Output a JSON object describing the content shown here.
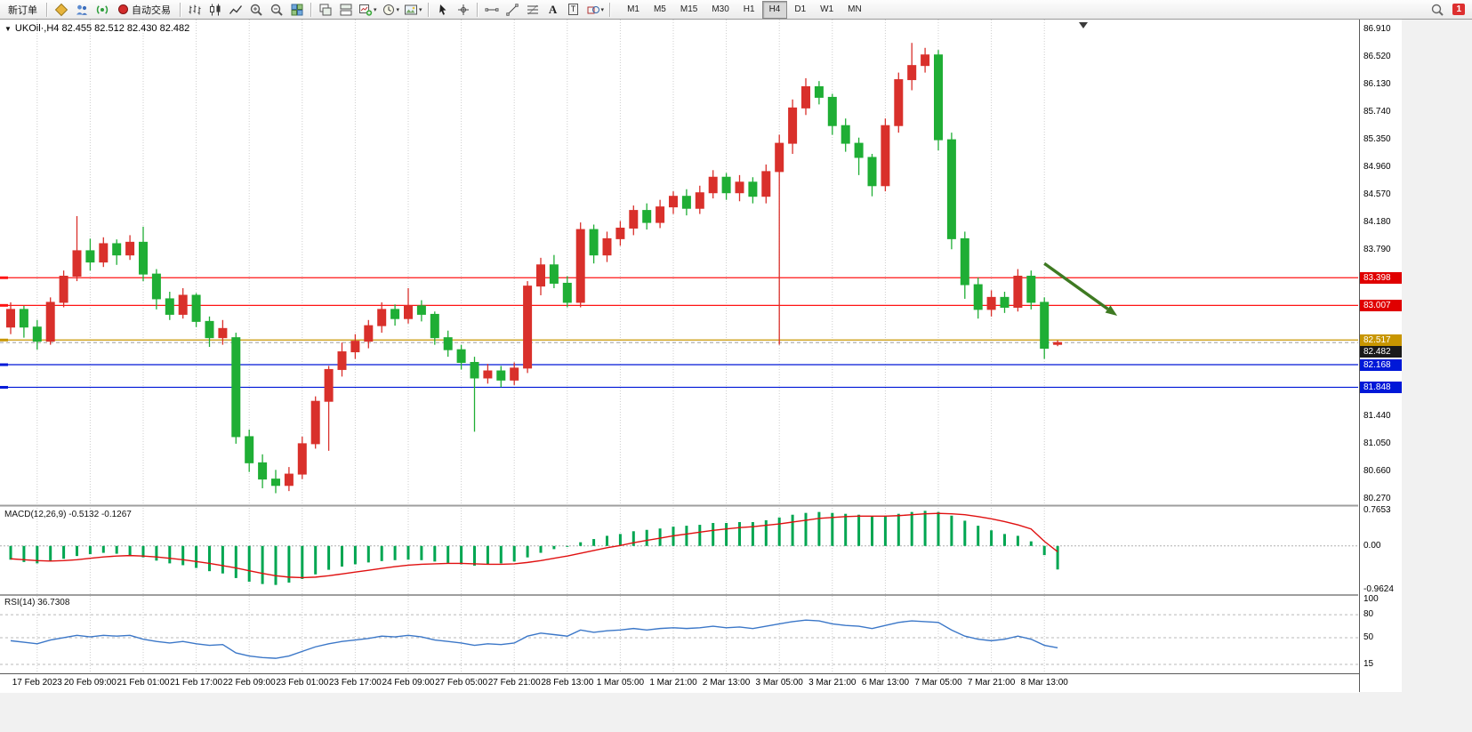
{
  "toolbar": {
    "new_order_label": "新订单",
    "auto_trading_label": "自动交易",
    "timeframes": [
      "M1",
      "M5",
      "M15",
      "M30",
      "H1",
      "H4",
      "D1",
      "W1",
      "MN"
    ],
    "active_timeframe": "H4",
    "notification_count": "1"
  },
  "glyphs": {
    "one_click_arrow": "▼",
    "dropdown_caret": "▾",
    "text_tool": "A",
    "label_tool": "T"
  },
  "chart": {
    "symbol_ohlc_text": "UKOil·,H4  82.455 82.512 82.430 82.482",
    "macd_text": "MACD(12,26,9) -0.5132 -0.1267",
    "rsi_text": "RSI(14) 36.7308"
  },
  "chart_data": {
    "type": "candlestick",
    "symbol": "UKOil",
    "timeframe": "H4",
    "current_bar": {
      "open": 82.455,
      "high": 82.512,
      "low": 82.43,
      "close": 82.482
    },
    "up_color": "#d9302b",
    "down_color": "#1fae35",
    "y_axis_ticks": [
      "86.910",
      "86.520",
      "86.130",
      "85.740",
      "85.350",
      "84.960",
      "84.570",
      "84.180",
      "83.790",
      "81.440",
      "81.050",
      "80.660",
      "80.270"
    ],
    "x_labels": [
      {
        "i": 2,
        "t": "17 Feb 2023"
      },
      {
        "i": 6,
        "t": "20 Feb 09:00"
      },
      {
        "i": 10,
        "t": "21 Feb 01:00"
      },
      {
        "i": 14,
        "t": "21 Feb 17:00"
      },
      {
        "i": 18,
        "t": "22 Feb 09:00"
      },
      {
        "i": 22,
        "t": "23 Feb 01:00"
      },
      {
        "i": 26,
        "t": "23 Feb 17:00"
      },
      {
        "i": 30,
        "t": "24 Feb 09:00"
      },
      {
        "i": 34,
        "t": "27 Feb 05:00"
      },
      {
        "i": 38,
        "t": "27 Feb 21:00"
      },
      {
        "i": 42,
        "t": "28 Feb 13:00"
      },
      {
        "i": 46,
        "t": "1 Mar 05:00"
      },
      {
        "i": 50,
        "t": "1 Mar 21:00"
      },
      {
        "i": 54,
        "t": "2 Mar 13:00"
      },
      {
        "i": 58,
        "t": "3 Mar 05:00"
      },
      {
        "i": 62,
        "t": "3 Mar 21:00"
      },
      {
        "i": 66,
        "t": "6 Mar 13:00"
      },
      {
        "i": 70,
        "t": "7 Mar 05:00"
      },
      {
        "i": 74,
        "t": "7 Mar 21:00"
      },
      {
        "i": 78,
        "t": "8 Mar 13:00"
      }
    ],
    "candles": [
      [
        82.7,
        83.05,
        82.6,
        82.95
      ],
      [
        82.95,
        83.0,
        82.55,
        82.7
      ],
      [
        82.7,
        82.8,
        82.38,
        82.5
      ],
      [
        82.5,
        83.12,
        82.45,
        83.05
      ],
      [
        83.05,
        83.5,
        82.98,
        83.42
      ],
      [
        83.42,
        84.27,
        83.35,
        83.78
      ],
      [
        83.78,
        83.95,
        83.5,
        83.62
      ],
      [
        83.62,
        83.97,
        83.55,
        83.88
      ],
      [
        83.88,
        83.94,
        83.58,
        83.72
      ],
      [
        83.72,
        84.0,
        83.65,
        83.9
      ],
      [
        83.9,
        84.12,
        83.35,
        83.45
      ],
      [
        83.45,
        83.52,
        82.95,
        83.1
      ],
      [
        83.1,
        83.2,
        82.8,
        82.88
      ],
      [
        82.88,
        83.25,
        82.82,
        83.15
      ],
      [
        83.15,
        83.18,
        82.7,
        82.78
      ],
      [
        82.78,
        82.85,
        82.42,
        82.55
      ],
      [
        82.55,
        82.8,
        82.45,
        82.68
      ],
      [
        82.55,
        82.62,
        81.05,
        81.15
      ],
      [
        81.15,
        81.25,
        80.65,
        80.78
      ],
      [
        80.78,
        80.9,
        80.42,
        80.55
      ],
      [
        80.55,
        80.68,
        80.35,
        80.46
      ],
      [
        80.46,
        80.72,
        80.38,
        80.62
      ],
      [
        80.62,
        81.15,
        80.55,
        81.05
      ],
      [
        81.05,
        81.72,
        80.98,
        81.65
      ],
      [
        81.65,
        82.15,
        80.95,
        82.1
      ],
      [
        82.1,
        82.48,
        82.0,
        82.35
      ],
      [
        82.35,
        82.6,
        82.25,
        82.5
      ],
      [
        82.5,
        82.8,
        82.4,
        82.72
      ],
      [
        82.72,
        83.05,
        82.62,
        82.95
      ],
      [
        82.95,
        83.02,
        82.72,
        82.82
      ],
      [
        82.82,
        83.25,
        82.75,
        83.0
      ],
      [
        83.0,
        83.08,
        82.78,
        82.88
      ],
      [
        82.88,
        82.92,
        82.45,
        82.55
      ],
      [
        82.55,
        82.65,
        82.28,
        82.38
      ],
      [
        82.38,
        82.45,
        82.1,
        82.2
      ],
      [
        82.2,
        82.28,
        81.22,
        81.98
      ],
      [
        81.98,
        82.18,
        81.9,
        82.08
      ],
      [
        82.08,
        82.15,
        81.85,
        81.95
      ],
      [
        81.95,
        82.2,
        81.88,
        82.12
      ],
      [
        82.12,
        83.35,
        82.05,
        83.28
      ],
      [
        83.28,
        83.68,
        83.15,
        83.58
      ],
      [
        83.58,
        83.72,
        83.25,
        83.32
      ],
      [
        83.32,
        83.42,
        82.98,
        83.05
      ],
      [
        83.05,
        84.18,
        82.98,
        84.08
      ],
      [
        84.08,
        84.15,
        83.6,
        83.72
      ],
      [
        83.72,
        84.05,
        83.62,
        83.95
      ],
      [
        83.95,
        84.2,
        83.85,
        84.1
      ],
      [
        84.1,
        84.42,
        84.0,
        84.35
      ],
      [
        84.35,
        84.45,
        84.08,
        84.18
      ],
      [
        84.18,
        84.5,
        84.1,
        84.4
      ],
      [
        84.4,
        84.62,
        84.3,
        84.55
      ],
      [
        84.55,
        84.65,
        84.28,
        84.38
      ],
      [
        84.38,
        84.7,
        84.3,
        84.6
      ],
      [
        84.6,
        84.92,
        84.52,
        84.82
      ],
      [
        84.82,
        84.88,
        84.5,
        84.6
      ],
      [
        84.6,
        84.85,
        84.48,
        84.75
      ],
      [
        84.75,
        84.82,
        84.45,
        84.55
      ],
      [
        84.55,
        85.0,
        84.45,
        84.9
      ],
      [
        84.9,
        85.42,
        82.45,
        85.3
      ],
      [
        85.3,
        85.92,
        85.15,
        85.8
      ],
      [
        85.8,
        86.22,
        85.7,
        86.1
      ],
      [
        86.1,
        86.18,
        85.85,
        85.95
      ],
      [
        85.95,
        86.0,
        85.42,
        85.55
      ],
      [
        85.55,
        85.65,
        85.18,
        85.3
      ],
      [
        85.3,
        85.38,
        84.85,
        85.1
      ],
      [
        85.1,
        85.15,
        84.55,
        84.7
      ],
      [
        84.7,
        85.65,
        84.62,
        85.55
      ],
      [
        85.55,
        86.3,
        85.45,
        86.2
      ],
      [
        86.2,
        86.72,
        86.05,
        86.4
      ],
      [
        86.4,
        86.65,
        86.3,
        86.55
      ],
      [
        86.55,
        86.62,
        85.2,
        85.35
      ],
      [
        85.35,
        85.45,
        83.8,
        83.95
      ],
      [
        83.95,
        84.05,
        83.1,
        83.3
      ],
      [
        83.3,
        83.4,
        82.82,
        82.95
      ],
      [
        82.95,
        83.22,
        82.85,
        83.12
      ],
      [
        83.12,
        83.2,
        82.9,
        82.98
      ],
      [
        82.98,
        83.52,
        82.92,
        83.42
      ],
      [
        83.42,
        83.5,
        82.95,
        83.05
      ],
      [
        83.05,
        83.12,
        82.25,
        82.4
      ],
      [
        82.455,
        82.512,
        82.43,
        82.482
      ]
    ],
    "hlines": [
      {
        "price": 83.398,
        "label": "83.398",
        "color": "#ff1414",
        "label_bg": "#e00000"
      },
      {
        "price": 83.007,
        "label": "83.007",
        "color": "#ff1414",
        "label_bg": "#e00000"
      },
      {
        "price": 82.517,
        "label": "82.517",
        "color": "#c89600",
        "label_bg": "#c89600"
      },
      {
        "price": 82.168,
        "label": "82.168",
        "color": "#0018d8",
        "label_bg": "#0018d8"
      },
      {
        "price": 81.848,
        "label": "81.848",
        "color": "#0018d8",
        "label_bg": "#0018d8"
      }
    ],
    "current_price": {
      "value": 82.482,
      "label": "82.482",
      "label_bg": "#1a1a1a",
      "line_color": "#9a9a9a"
    },
    "arrow": {
      "from_bar": 78,
      "from_price": 83.6,
      "to_bar": 83.5,
      "to_price": 82.86,
      "color": "#3e7a22"
    },
    "macd": {
      "title": "MACD(12,26,9)",
      "main_value": -0.5132,
      "signal_value": -0.1267,
      "ticks": [
        "0.7653",
        "0.00",
        "-0.9624"
      ],
      "hist_color": "#00a651",
      "signal_color": "#e01010",
      "histogram": [
        -0.3,
        -0.35,
        -0.38,
        -0.33,
        -0.28,
        -0.22,
        -0.18,
        -0.15,
        -0.17,
        -0.2,
        -0.25,
        -0.32,
        -0.38,
        -0.42,
        -0.48,
        -0.55,
        -0.6,
        -0.7,
        -0.78,
        -0.83,
        -0.85,
        -0.8,
        -0.72,
        -0.62,
        -0.52,
        -0.45,
        -0.4,
        -0.36,
        -0.33,
        -0.31,
        -0.3,
        -0.31,
        -0.34,
        -0.37,
        -0.4,
        -0.43,
        -0.41,
        -0.38,
        -0.34,
        -0.25,
        -0.15,
        -0.07,
        -0.02,
        0.08,
        0.15,
        0.22,
        0.26,
        0.32,
        0.35,
        0.38,
        0.42,
        0.44,
        0.46,
        0.5,
        0.5,
        0.52,
        0.52,
        0.56,
        0.62,
        0.68,
        0.72,
        0.74,
        0.72,
        0.7,
        0.68,
        0.64,
        0.66,
        0.7,
        0.74,
        0.765,
        0.74,
        0.66,
        0.55,
        0.44,
        0.34,
        0.26,
        0.22,
        0.1,
        -0.2,
        -0.5132
      ],
      "signal": [
        -0.28,
        -0.3,
        -0.32,
        -0.33,
        -0.32,
        -0.3,
        -0.27,
        -0.24,
        -0.22,
        -0.21,
        -0.22,
        -0.24,
        -0.27,
        -0.3,
        -0.34,
        -0.38,
        -0.43,
        -0.48,
        -0.54,
        -0.6,
        -0.65,
        -0.68,
        -0.69,
        -0.68,
        -0.65,
        -0.61,
        -0.57,
        -0.53,
        -0.49,
        -0.45,
        -0.42,
        -0.4,
        -0.39,
        -0.38,
        -0.38,
        -0.39,
        -0.4,
        -0.4,
        -0.39,
        -0.36,
        -0.32,
        -0.27,
        -0.22,
        -0.16,
        -0.1,
        -0.04,
        0.01,
        0.07,
        0.12,
        0.17,
        0.22,
        0.26,
        0.3,
        0.34,
        0.37,
        0.4,
        0.42,
        0.45,
        0.48,
        0.52,
        0.56,
        0.6,
        0.62,
        0.64,
        0.65,
        0.65,
        0.65,
        0.66,
        0.68,
        0.7,
        0.71,
        0.7,
        0.68,
        0.64,
        0.59,
        0.53,
        0.46,
        0.37,
        0.1,
        -0.1267
      ]
    },
    "rsi": {
      "title": "RSI(14)",
      "value": 36.7308,
      "ticks": [
        "100",
        "80",
        "50",
        "15"
      ],
      "levels": [
        80,
        50,
        15
      ],
      "line_color": "#3b77c8",
      "values": [
        46,
        44,
        42,
        47,
        50,
        53,
        51,
        53,
        52,
        53,
        48,
        45,
        43,
        45,
        42,
        40,
        41,
        30,
        26,
        24,
        23,
        26,
        32,
        38,
        42,
        45,
        47,
        49,
        52,
        51,
        53,
        51,
        47,
        45,
        43,
        40,
        42,
        41,
        43,
        52,
        56,
        54,
        52,
        60,
        57,
        59,
        60,
        62,
        60,
        62,
        63,
        62,
        63,
        65,
        63,
        64,
        62,
        65,
        68,
        71,
        73,
        72,
        68,
        66,
        65,
        62,
        66,
        70,
        72,
        71,
        70,
        60,
        52,
        48,
        46,
        48,
        52,
        48,
        40,
        36.73
      ]
    }
  }
}
